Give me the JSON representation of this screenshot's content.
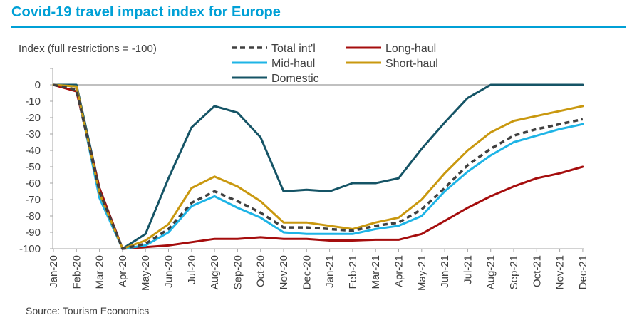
{
  "header": {
    "title": "Covid-19 travel impact index for Europe",
    "source": "Source: Tourism Economics"
  },
  "chart_data": {
    "type": "line",
    "title": "Covid-19 travel impact index for Europe",
    "ylabel": "Index (full restrictions = -100)",
    "xlabel": "",
    "ylim": [
      -100,
      0
    ],
    "yticks": [
      0,
      -10,
      -20,
      -30,
      -40,
      -50,
      -60,
      -70,
      -80,
      -90,
      -100
    ],
    "categories": [
      "Jan-20",
      "Feb-20",
      "Mar-20",
      "Apr-20",
      "May-20",
      "Jun-20",
      "Jul-20",
      "Aug-20",
      "Sep-20",
      "Oct-20",
      "Nov-20",
      "Dec-20",
      "Jan-21",
      "Feb-21",
      "Mar-21",
      "Apr-21",
      "May-21",
      "Jun-21",
      "Jul-21",
      "Aug-21",
      "Sep-21",
      "Oct-21",
      "Nov-21",
      "Dec-21"
    ],
    "grid": false,
    "legend": "top",
    "series": [
      {
        "name": "Total int'l",
        "color": "#404040",
        "dash": true,
        "values": [
          0,
          -3,
          -65,
          -100,
          -97,
          -88,
          -72,
          -65,
          -71,
          -78,
          -87,
          -87,
          -88,
          -89,
          -86,
          -84,
          -76,
          -63,
          -49,
          -39,
          -31,
          -27,
          -24,
          -21
        ]
      },
      {
        "name": "Long-haul",
        "color": "#a50d0d",
        "dash": false,
        "values": [
          0,
          -4,
          -63,
          -100,
          -99,
          -98,
          -96,
          -94,
          -94,
          -93,
          -94,
          -94,
          -95,
          -95,
          -94.5,
          -94.5,
          -91,
          -83,
          -75,
          -68,
          -62,
          -57,
          -54,
          -50
        ]
      },
      {
        "name": "Mid-haul",
        "color": "#1eb4e6",
        "dash": false,
        "values": [
          0,
          -1,
          -69,
          -100,
          -98,
          -90,
          -74,
          -68,
          -75,
          -81,
          -90,
          -91,
          -91,
          -91,
          -88,
          -86,
          -80,
          -65,
          -53,
          -43,
          -35,
          -31,
          -27,
          -24
        ]
      },
      {
        "name": "Short-haul",
        "color": "#c9980f",
        "dash": false,
        "values": [
          0,
          -1,
          -66,
          -100,
          -95,
          -85,
          -63,
          -56,
          -62,
          -71,
          -84,
          -84,
          -86,
          -88,
          -84,
          -81,
          -70,
          -54,
          -40,
          -29,
          -22,
          -19,
          -16,
          -13
        ]
      },
      {
        "name": "Domestic",
        "color": "#155466",
        "dash": false,
        "values": [
          0,
          0,
          -63,
          -100,
          -91,
          -57,
          -26,
          -13,
          -17,
          -32,
          -65,
          -64,
          -65,
          -60,
          -60,
          -57,
          -39,
          -23,
          -8,
          0,
          0,
          0,
          0,
          0
        ]
      }
    ]
  }
}
